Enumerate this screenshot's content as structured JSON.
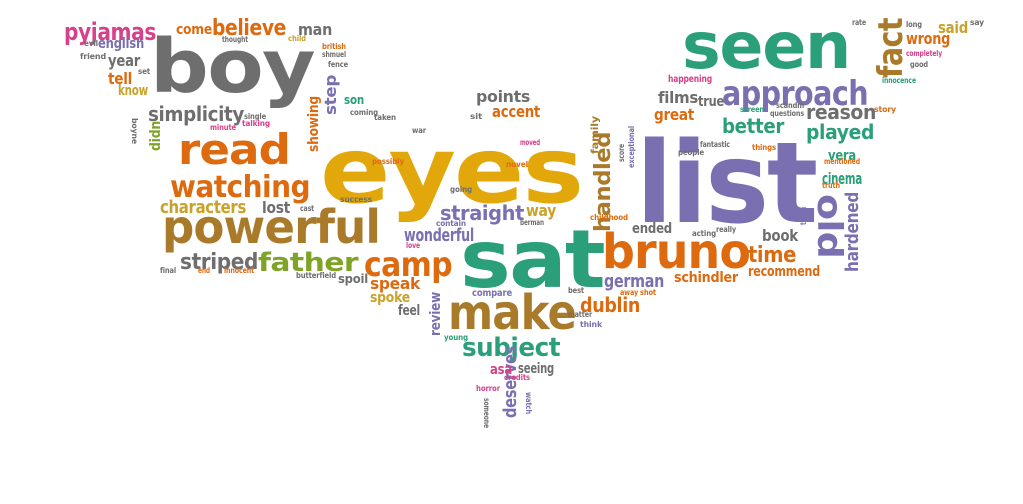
{
  "palette": {
    "gray": "#6e6e6e",
    "gold": "#e2a80b",
    "purple": "#7a6fb0",
    "green": "#2a9f7a",
    "orange": "#de6a10",
    "brown": "#a87a2a",
    "lime": "#7fa326",
    "pink": "#d8408a",
    "mustard": "#c9a22a"
  },
  "words": [
    {
      "text": "eyes",
      "color": "gold"
    },
    {
      "text": "list",
      "color": "purple"
    },
    {
      "text": "boy",
      "color": "gray"
    },
    {
      "text": "seen",
      "color": "green"
    },
    {
      "text": "sat",
      "color": "green"
    },
    {
      "text": "bruno",
      "color": "orange"
    },
    {
      "text": "powerful",
      "color": "brown"
    },
    {
      "text": "make",
      "color": "brown"
    },
    {
      "text": "read",
      "color": "orange"
    },
    {
      "text": "approach",
      "color": "purple"
    },
    {
      "text": "watching",
      "color": "orange"
    },
    {
      "text": "camp",
      "color": "orange"
    },
    {
      "text": "fact",
      "color": "brown"
    },
    {
      "text": "old",
      "color": "purple"
    },
    {
      "text": "father",
      "color": "lime"
    },
    {
      "text": "subject",
      "color": "green"
    },
    {
      "text": "striped",
      "color": "gray"
    },
    {
      "text": "straight",
      "color": "purple"
    },
    {
      "text": "reason",
      "color": "gray"
    },
    {
      "text": "played",
      "color": "green"
    },
    {
      "text": "better",
      "color": "green"
    },
    {
      "text": "believe",
      "color": "orange"
    },
    {
      "text": "pyjamas",
      "color": "pink"
    },
    {
      "text": "simplicity",
      "color": "gray"
    },
    {
      "text": "characters",
      "color": "mustard"
    },
    {
      "text": "handled",
      "color": "brown"
    },
    {
      "text": "time",
      "color": "orange"
    },
    {
      "text": "deserves",
      "color": "purple"
    },
    {
      "text": "wonderful",
      "color": "purple"
    },
    {
      "text": "german",
      "color": "purple"
    },
    {
      "text": "dublin",
      "color": "orange"
    },
    {
      "text": "hardened",
      "color": "purple"
    },
    {
      "text": "lost",
      "color": "gray"
    },
    {
      "text": "way",
      "color": "mustard"
    },
    {
      "text": "points",
      "color": "gray"
    },
    {
      "text": "accent",
      "color": "orange"
    },
    {
      "text": "films",
      "color": "gray"
    },
    {
      "text": "book",
      "color": "gray"
    },
    {
      "text": "ended",
      "color": "gray"
    },
    {
      "text": "speak",
      "color": "orange"
    },
    {
      "text": "cinema",
      "color": "green"
    },
    {
      "text": "vera",
      "color": "green"
    },
    {
      "text": "recommend",
      "color": "orange"
    },
    {
      "text": "schindler",
      "color": "orange"
    },
    {
      "text": "showing",
      "color": "orange"
    },
    {
      "text": "step",
      "color": "purple"
    },
    {
      "text": "come",
      "color": "orange"
    },
    {
      "text": "man",
      "color": "gray"
    },
    {
      "text": "english",
      "color": "purple"
    },
    {
      "text": "year",
      "color": "gray"
    },
    {
      "text": "tell",
      "color": "orange"
    },
    {
      "text": "know",
      "color": "mustard"
    },
    {
      "text": "didn",
      "color": "lime"
    },
    {
      "text": "said",
      "color": "mustard"
    },
    {
      "text": "wrong",
      "color": "orange"
    },
    {
      "text": "great",
      "color": "orange"
    },
    {
      "text": "true",
      "color": "gray"
    },
    {
      "text": "spoke",
      "color": "mustard"
    },
    {
      "text": "feel",
      "color": "gray"
    },
    {
      "text": "review",
      "color": "purple"
    },
    {
      "text": "seeing",
      "color": "gray"
    },
    {
      "text": "asa",
      "color": "pink"
    },
    {
      "text": "happening",
      "color": "pink"
    },
    {
      "text": "family",
      "color": "brown"
    },
    {
      "text": "son",
      "color": "green"
    },
    {
      "text": "spoil",
      "color": "gray"
    },
    {
      "text": "compare",
      "color": "purple"
    },
    {
      "text": "evil",
      "color": "gray"
    },
    {
      "text": "friend",
      "color": "gray"
    },
    {
      "text": "thought",
      "color": "gray"
    },
    {
      "text": "child",
      "color": "mustard"
    },
    {
      "text": "british",
      "color": "orange"
    },
    {
      "text": "shmuel",
      "color": "gray"
    },
    {
      "text": "fence",
      "color": "gray"
    },
    {
      "text": "boyne",
      "color": "gray"
    },
    {
      "text": "minute",
      "color": "pink"
    },
    {
      "text": "talking",
      "color": "pink"
    },
    {
      "text": "single",
      "color": "gray"
    },
    {
      "text": "coming",
      "color": "gray"
    },
    {
      "text": "taken",
      "color": "gray"
    },
    {
      "text": "war",
      "color": "gray"
    },
    {
      "text": "moved",
      "color": "pink"
    },
    {
      "text": "novel",
      "color": "orange"
    },
    {
      "text": "sit",
      "color": "gray"
    },
    {
      "text": "possibly",
      "color": "orange"
    },
    {
      "text": "going",
      "color": "gray"
    },
    {
      "text": "success",
      "color": "gray"
    },
    {
      "text": "cast",
      "color": "gray"
    },
    {
      "text": "love",
      "color": "pink"
    },
    {
      "text": "berman",
      "color": "gray"
    },
    {
      "text": "contain",
      "color": "purple"
    },
    {
      "text": "childhood",
      "color": "orange"
    },
    {
      "text": "score",
      "color": "gray"
    },
    {
      "text": "exceptional",
      "color": "purple"
    },
    {
      "text": "people",
      "color": "gray"
    },
    {
      "text": "fantastic",
      "color": "gray"
    },
    {
      "text": "things",
      "color": "orange"
    },
    {
      "text": "questions",
      "color": "gray"
    },
    {
      "text": "scandm",
      "color": "gray"
    },
    {
      "text": "screen",
      "color": "green"
    },
    {
      "text": "mentioned",
      "color": "orange"
    },
    {
      "text": "truth",
      "color": "orange"
    },
    {
      "text": "taken",
      "color": "purple"
    },
    {
      "text": "story",
      "color": "orange"
    },
    {
      "text": "rate",
      "color": "gray"
    },
    {
      "text": "long",
      "color": "gray"
    },
    {
      "text": "say",
      "color": "gray"
    },
    {
      "text": "completely",
      "color": "pink"
    },
    {
      "text": "good",
      "color": "gray"
    },
    {
      "text": "innocence",
      "color": "green"
    },
    {
      "text": "acting",
      "color": "gray"
    },
    {
      "text": "really",
      "color": "gray"
    },
    {
      "text": "final",
      "color": "gray"
    },
    {
      "text": "end",
      "color": "orange"
    },
    {
      "text": "innocent",
      "color": "orange"
    },
    {
      "text": "butterfield",
      "color": "gray"
    },
    {
      "text": "away",
      "color": "orange"
    },
    {
      "text": "shot",
      "color": "orange"
    },
    {
      "text": "best",
      "color": "gray"
    },
    {
      "text": "matter",
      "color": "gray"
    },
    {
      "text": "think",
      "color": "purple"
    },
    {
      "text": "young",
      "color": "green"
    },
    {
      "text": "credits",
      "color": "pink"
    },
    {
      "text": "horror",
      "color": "pink"
    },
    {
      "text": "someone",
      "color": "gray"
    },
    {
      "text": "watch",
      "color": "purple"
    },
    {
      "text": "set",
      "color": "gray"
    }
  ]
}
